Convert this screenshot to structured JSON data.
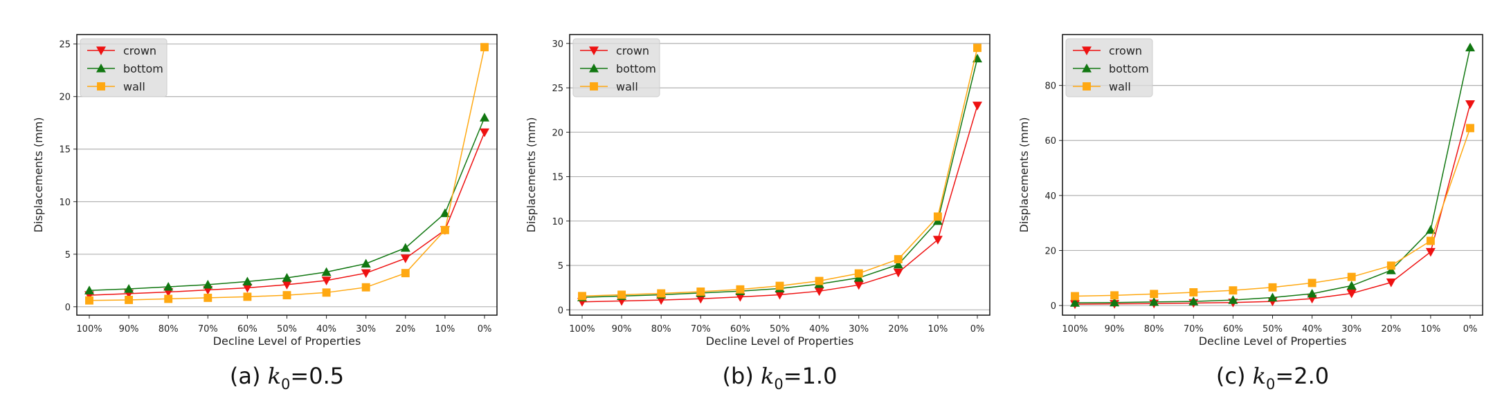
{
  "colors": {
    "crown": "#ee1111",
    "bottom": "#117711",
    "wall": "#ffa811",
    "grid": "#b0b0b0"
  },
  "chart_data": [
    {
      "type": "line",
      "caption_prefix": "(a) ",
      "caption_k": "k",
      "caption_sub": "0",
      "caption_value": "=0.5",
      "xlabel": "Decline Level of Properties",
      "ylabel": "Displacements (mm)",
      "categories": [
        "100%",
        "90%",
        "80%",
        "70%",
        "60%",
        "50%",
        "40%",
        "30%",
        "20%",
        "10%",
        "0%"
      ],
      "ylim": [
        -0.8,
        25.9
      ],
      "yticks": [
        0,
        5,
        10,
        15,
        20,
        25
      ],
      "series": [
        {
          "name": "crown",
          "marker": "triangle-down",
          "values": [
            1.1,
            1.25,
            1.4,
            1.6,
            1.8,
            2.1,
            2.5,
            3.2,
            4.6,
            7.3,
            16.6
          ]
        },
        {
          "name": "bottom",
          "marker": "triangle-up",
          "values": [
            1.55,
            1.7,
            1.9,
            2.1,
            2.4,
            2.75,
            3.3,
            4.1,
            5.6,
            8.9,
            18.0
          ]
        },
        {
          "name": "wall",
          "marker": "square",
          "values": [
            0.6,
            0.65,
            0.75,
            0.85,
            0.95,
            1.1,
            1.35,
            1.85,
            3.2,
            7.3,
            24.7
          ]
        }
      ]
    },
    {
      "type": "line",
      "caption_prefix": "(b) ",
      "caption_k": "k",
      "caption_sub": "0",
      "caption_value": "=1.0",
      "xlabel": "Decline Level of Properties",
      "ylabel": "Displacements (mm)",
      "categories": [
        "100%",
        "90%",
        "80%",
        "70%",
        "60%",
        "50%",
        "40%",
        "30%",
        "20%",
        "10%",
        "0%"
      ],
      "ylim": [
        -0.6,
        31.0
      ],
      "yticks": [
        0,
        5,
        10,
        15,
        20,
        25,
        30
      ],
      "series": [
        {
          "name": "crown",
          "marker": "triangle-down",
          "values": [
            0.9,
            1.0,
            1.1,
            1.25,
            1.45,
            1.7,
            2.1,
            2.8,
            4.2,
            7.9,
            23.0
          ]
        },
        {
          "name": "bottom",
          "marker": "triangle-up",
          "values": [
            1.4,
            1.55,
            1.7,
            1.9,
            2.1,
            2.4,
            2.9,
            3.6,
            5.1,
            10.0,
            28.3
          ]
        },
        {
          "name": "wall",
          "marker": "square",
          "values": [
            1.55,
            1.7,
            1.85,
            2.05,
            2.3,
            2.7,
            3.25,
            4.1,
            5.7,
            10.5,
            29.5
          ]
        }
      ]
    },
    {
      "type": "line",
      "caption_prefix": "(c) ",
      "caption_k": "k",
      "caption_sub": "0",
      "caption_value": "=2.0",
      "xlabel": "Decline Level of Properties",
      "ylabel": "Displacements (mm)",
      "categories": [
        "100%",
        "90%",
        "80%",
        "70%",
        "60%",
        "50%",
        "40%",
        "30%",
        "20%",
        "10%",
        "0%"
      ],
      "ylim": [
        -3.5,
        98.5
      ],
      "yticks": [
        0,
        20,
        40,
        60,
        80
      ],
      "series": [
        {
          "name": "crown",
          "marker": "triangle-down",
          "values": [
            0.5,
            0.6,
            0.7,
            0.9,
            1.1,
            1.5,
            2.5,
            4.4,
            8.4,
            19.5,
            73.2
          ]
        },
        {
          "name": "bottom",
          "marker": "triangle-up",
          "values": [
            1.0,
            1.1,
            1.3,
            1.5,
            2.0,
            2.9,
            4.3,
            7.2,
            12.8,
            27.5,
            93.8
          ]
        },
        {
          "name": "wall",
          "marker": "square",
          "values": [
            3.4,
            3.7,
            4.2,
            4.8,
            5.5,
            6.6,
            8.2,
            10.4,
            14.5,
            23.5,
            64.5
          ]
        }
      ]
    }
  ]
}
